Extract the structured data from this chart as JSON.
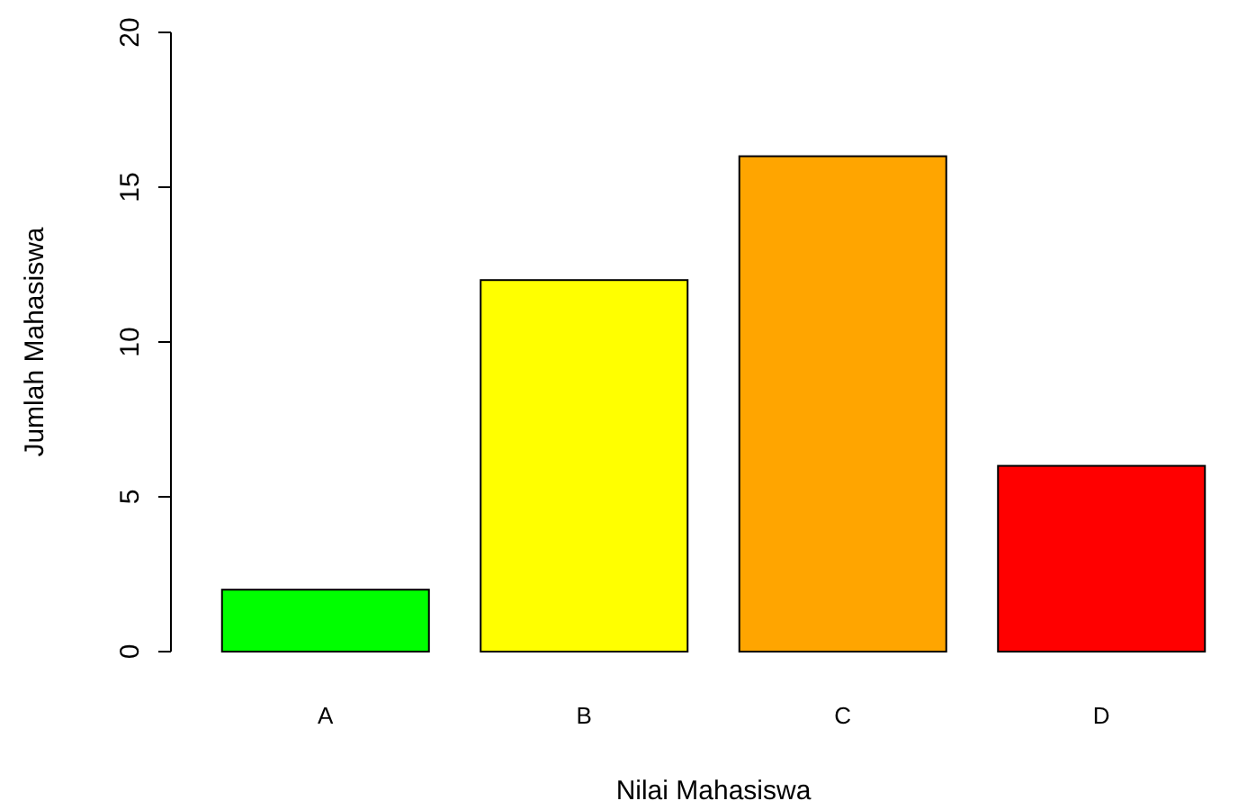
{
  "chart_data": {
    "type": "bar",
    "xlabel": "Nilai Mahasiswa",
    "ylabel": "Jumlah Mahasiswa",
    "categories": [
      "A",
      "B",
      "C",
      "D"
    ],
    "values": [
      2,
      12,
      16,
      6
    ],
    "colors": [
      "#00ff00",
      "#ffff00",
      "#ffa500",
      "#ff0000"
    ],
    "ylim": [
      0,
      20
    ],
    "yticks": [
      0,
      5,
      10,
      15,
      20
    ],
    "grid": false
  }
}
